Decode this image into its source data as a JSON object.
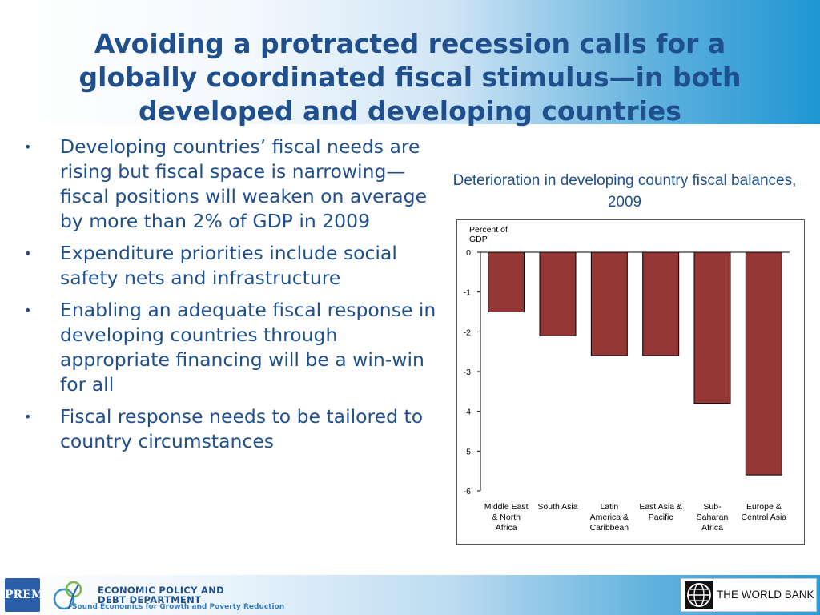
{
  "slide": {
    "title": "Avoiding a protracted recession calls for a globally coordinated fiscal stimulus—in both developed and developing countries",
    "bullets": [
      "Developing countries’ fiscal needs are rising but fiscal space is narrowing—fiscal positions will weaken on average by more than 2% of GDP in 2009",
      "Expenditure priorities include social safety nets and infrastructure",
      "Enabling an adequate fiscal response in developing countries through appropriate financing will be a win-win for all",
      "Fiscal response needs to be tailored to country circumstances"
    ],
    "bullet_glyph": "•"
  },
  "chart_data": {
    "type": "bar",
    "title": "Deterioration in developing country fiscal balances, 2009",
    "ylabel": "Percent of GDP",
    "categories": [
      [
        "Middle East",
        "& North",
        "Africa"
      ],
      [
        "South Asia"
      ],
      [
        "Latin",
        "America &",
        "Caribbean"
      ],
      [
        "East Asia &",
        "Pacific"
      ],
      [
        "Sub-",
        "Saharan",
        "Africa"
      ],
      [
        "Europe &",
        "Central Asia"
      ]
    ],
    "values": [
      -1.5,
      -2.1,
      -2.6,
      -2.6,
      -3.8,
      -5.6
    ],
    "ylim": [
      -6,
      0
    ],
    "yticks": [
      0,
      -1,
      -2,
      -3,
      -4,
      -5,
      -6
    ],
    "grid": false,
    "bar_color": "#943634"
  },
  "footer": {
    "prem_logo_text": "PREM",
    "department_line1": "ECONOMIC POLICY AND",
    "department_line2": "DEBT DEPARTMENT",
    "department_tagline": "Sound Economics for Growth and Poverty Reduction",
    "world_bank_label": "THE WORLD BANK"
  }
}
